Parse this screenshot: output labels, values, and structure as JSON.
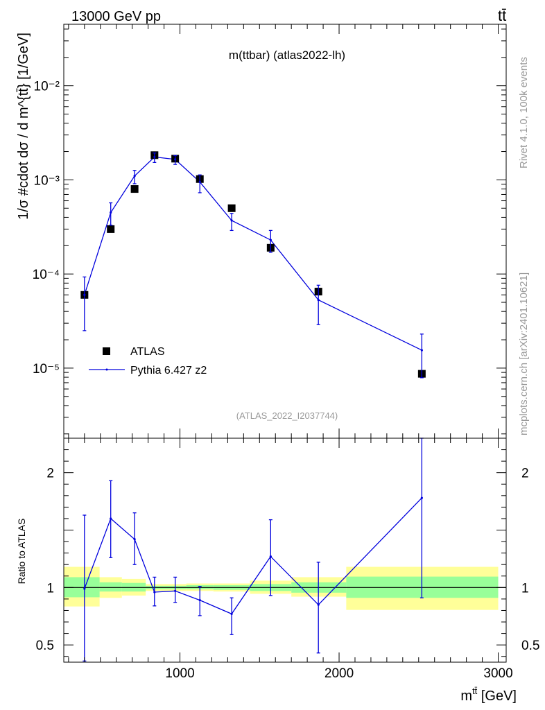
{
  "header": {
    "energy_label": "13000 GeV pp",
    "process_label": "tt̄"
  },
  "side_labels": {
    "rivet": "Rivet 4.1.0,  100k events",
    "mcplots": "mcplots.cern.ch [arXiv:2401.10621]"
  },
  "chart_data": [
    {
      "type": "scatter",
      "title": "m(ttbar) (atlas2022-lh)",
      "watermark": "(ATLAS_2022_I2037744)",
      "ylabel": "1/σ #cdot dσ / d m^{tt̄} [1/GeV]",
      "yscale": "log",
      "ylim": [
        1.8e-06,
        0.045
      ],
      "xlim": [
        270,
        3050
      ],
      "y_ticks": [
        {
          "value": 1e-05,
          "label": "10⁻⁵"
        },
        {
          "value": 0.0001,
          "label": "10⁻⁴"
        },
        {
          "value": 0.001,
          "label": "10⁻³"
        },
        {
          "value": 0.01,
          "label": "10⁻²"
        }
      ],
      "legend": {
        "position": "lower-left",
        "entries": [
          "ATLAS",
          "Pythia 6.427 z2"
        ]
      },
      "series": [
        {
          "name": "ATLAS",
          "marker": "square",
          "color": "#000000",
          "x": [
            400,
            565,
            715,
            840,
            970,
            1125,
            1325,
            1570,
            1870,
            2520
          ],
          "y": [
            6e-05,
            0.0003,
            0.0008,
            0.00183,
            0.00168,
            0.00102,
            0.0005,
            0.00019,
            6.5e-05,
            8.7e-06
          ]
        },
        {
          "name": "Pythia 6.427 z2",
          "marker": "line",
          "color": "#0000dd",
          "x": [
            400,
            565,
            715,
            840,
            970,
            1125,
            1325,
            1570,
            1870,
            2520
          ],
          "y": [
            6e-05,
            0.00045,
            0.0011,
            0.00175,
            0.00165,
            0.00095,
            0.00037,
            0.00023,
            5.3e-05,
            1.55e-05
          ],
          "y_err_low": [
            3.5e-05,
            0.00012,
            0.00019,
            0.00022,
            0.00019,
            0.00022,
            8e-05,
            6e-05,
            2.4e-05,
            7.6e-06
          ],
          "y_err_high": [
            3.3e-05,
            0.00012,
            0.00016,
            0.00018,
            0.00016,
            0.00018,
            7e-05,
            6e-05,
            2.3e-05,
            7.5e-06
          ]
        }
      ]
    },
    {
      "type": "line",
      "ylabel": "Ratio to ATLAS",
      "xlabel": "m^{tt̄} [GeV]",
      "ylim": [
        0.35,
        2.3
      ],
      "xlim": [
        270,
        3050
      ],
      "x_ticks": [
        1000,
        2000,
        3000
      ],
      "y_ticks": [
        0.5,
        1,
        2
      ],
      "reference_line": 1.0,
      "bands": [
        {
          "x_lo": 270,
          "x_hi": 495,
          "inner_lo": 0.915,
          "inner_hi": 1.09,
          "outer_lo": 0.835,
          "outer_hi": 1.18
        },
        {
          "x_lo": 495,
          "x_hi": 635,
          "inner_lo": 0.965,
          "inner_hi": 1.045,
          "outer_lo": 0.91,
          "outer_hi": 1.09
        },
        {
          "x_lo": 635,
          "x_hi": 785,
          "inner_lo": 0.965,
          "inner_hi": 1.04,
          "outer_lo": 0.93,
          "outer_hi": 1.075
        },
        {
          "x_lo": 785,
          "x_hi": 900,
          "inner_lo": 0.985,
          "inner_hi": 1.015,
          "outer_lo": 0.97,
          "outer_hi": 1.03
        },
        {
          "x_lo": 900,
          "x_hi": 1040,
          "inner_lo": 0.985,
          "inner_hi": 1.015,
          "outer_lo": 0.97,
          "outer_hi": 1.03
        },
        {
          "x_lo": 1040,
          "x_hi": 1210,
          "inner_lo": 0.985,
          "inner_hi": 1.02,
          "outer_lo": 0.97,
          "outer_hi": 1.035
        },
        {
          "x_lo": 1210,
          "x_hi": 1440,
          "inner_lo": 0.98,
          "inner_hi": 1.02,
          "outer_lo": 0.965,
          "outer_hi": 1.035
        },
        {
          "x_lo": 1440,
          "x_hi": 1700,
          "inner_lo": 0.97,
          "inner_hi": 1.03,
          "outer_lo": 0.945,
          "outer_hi": 1.06
        },
        {
          "x_lo": 1700,
          "x_hi": 2045,
          "inner_lo": 0.955,
          "inner_hi": 1.045,
          "outer_lo": 0.92,
          "outer_hi": 1.09
        },
        {
          "x_lo": 2045,
          "x_hi": 3000,
          "inner_lo": 0.91,
          "inner_hi": 1.095,
          "outer_lo": 0.805,
          "outer_hi": 1.18
        }
      ],
      "band_colors": {
        "inner": "#99ff99",
        "outer": "#ffff99"
      },
      "series": [
        {
          "name": "Pythia 6.427 z2",
          "color": "#0000dd",
          "x": [
            400,
            565,
            715,
            840,
            970,
            1125,
            1325,
            1570,
            1870,
            2520
          ],
          "y": [
            0.99,
            1.6,
            1.42,
            0.96,
            0.97,
            0.89,
            0.77,
            1.27,
            0.85,
            1.78
          ],
          "y_err_low": [
            0.63,
            0.34,
            0.22,
            0.12,
            0.1,
            0.135,
            0.18,
            0.34,
            0.42,
            0.87
          ],
          "y_err_high": [
            0.64,
            0.33,
            0.23,
            0.13,
            0.12,
            0.12,
            0.14,
            0.32,
            0.37,
            0.52
          ]
        }
      ]
    }
  ]
}
